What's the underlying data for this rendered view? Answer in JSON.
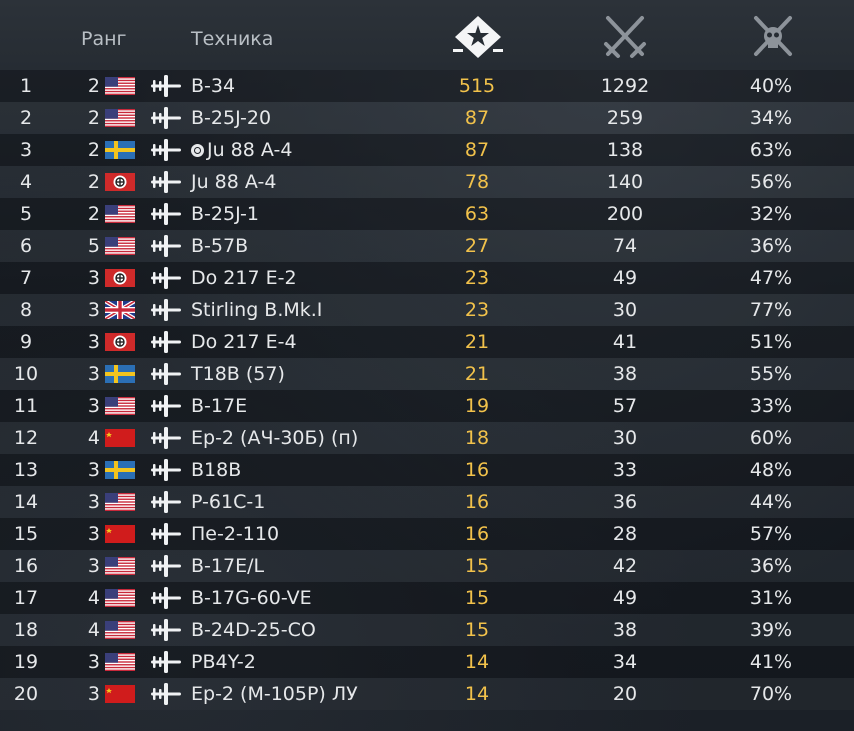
{
  "header": {
    "rank_label": "Ранг",
    "vehicle_label": "Техника",
    "score_icon": "star-badge-icon",
    "battles_icon": "crossed-swords-icon",
    "winrate_icon": "crossed-swords-skull-icon"
  },
  "colors": {
    "score": "#f2c24b",
    "text": "#e6e8ea",
    "header_text": "#b9bfc5"
  },
  "rows": [
    {
      "num": "1",
      "rank": "2",
      "flag": "usa",
      "name": "B-34",
      "special": false,
      "score": "515",
      "battles": "1292",
      "winrate": "40%"
    },
    {
      "num": "2",
      "rank": "2",
      "flag": "usa",
      "name": "B-25J-20",
      "special": false,
      "score": "87",
      "battles": "259",
      "winrate": "34%"
    },
    {
      "num": "3",
      "rank": "2",
      "flag": "sweden",
      "name": "Ju 88 A-4",
      "special": true,
      "score": "87",
      "battles": "138",
      "winrate": "63%"
    },
    {
      "num": "4",
      "rank": "2",
      "flag": "germany",
      "name": "Ju 88 A-4",
      "special": false,
      "score": "78",
      "battles": "140",
      "winrate": "56%"
    },
    {
      "num": "5",
      "rank": "2",
      "flag": "usa",
      "name": "B-25J-1",
      "special": false,
      "score": "63",
      "battles": "200",
      "winrate": "32%"
    },
    {
      "num": "6",
      "rank": "5",
      "flag": "usa",
      "name": "B-57B",
      "special": false,
      "score": "27",
      "battles": "74",
      "winrate": "36%"
    },
    {
      "num": "7",
      "rank": "3",
      "flag": "germany",
      "name": "Do 217 E-2",
      "special": false,
      "score": "23",
      "battles": "49",
      "winrate": "47%"
    },
    {
      "num": "8",
      "rank": "3",
      "flag": "uk",
      "name": "Stirling B.Mk.I",
      "special": false,
      "score": "23",
      "battles": "30",
      "winrate": "77%"
    },
    {
      "num": "9",
      "rank": "3",
      "flag": "germany",
      "name": "Do 217 E-4",
      "special": false,
      "score": "21",
      "battles": "41",
      "winrate": "51%"
    },
    {
      "num": "10",
      "rank": "3",
      "flag": "sweden",
      "name": "T18B (57)",
      "special": false,
      "score": "21",
      "battles": "38",
      "winrate": "55%"
    },
    {
      "num": "11",
      "rank": "3",
      "flag": "usa",
      "name": "B-17E",
      "special": false,
      "score": "19",
      "battles": "57",
      "winrate": "33%"
    },
    {
      "num": "12",
      "rank": "4",
      "flag": "ussr",
      "name": "Ер-2 (АЧ-30Б) (п)",
      "special": false,
      "score": "18",
      "battles": "30",
      "winrate": "60%"
    },
    {
      "num": "13",
      "rank": "3",
      "flag": "sweden",
      "name": "B18B",
      "special": false,
      "score": "16",
      "battles": "33",
      "winrate": "48%"
    },
    {
      "num": "14",
      "rank": "3",
      "flag": "usa",
      "name": "P-61C-1",
      "special": false,
      "score": "16",
      "battles": "36",
      "winrate": "44%"
    },
    {
      "num": "15",
      "rank": "3",
      "flag": "ussr",
      "name": "Пе-2-110",
      "special": false,
      "score": "16",
      "battles": "28",
      "winrate": "57%"
    },
    {
      "num": "16",
      "rank": "3",
      "flag": "usa",
      "name": "B-17E/L",
      "special": false,
      "score": "15",
      "battles": "42",
      "winrate": "36%"
    },
    {
      "num": "17",
      "rank": "4",
      "flag": "usa",
      "name": "B-17G-60-VE",
      "special": false,
      "score": "15",
      "battles": "49",
      "winrate": "31%"
    },
    {
      "num": "18",
      "rank": "4",
      "flag": "usa",
      "name": "B-24D-25-CO",
      "special": false,
      "score": "15",
      "battles": "38",
      "winrate": "39%"
    },
    {
      "num": "19",
      "rank": "3",
      "flag": "usa",
      "name": "PB4Y-2",
      "special": false,
      "score": "14",
      "battles": "34",
      "winrate": "41%"
    },
    {
      "num": "20",
      "rank": "3",
      "flag": "ussr",
      "name": "Ер-2 (М-105Р) ЛУ",
      "special": false,
      "score": "14",
      "battles": "20",
      "winrate": "70%"
    }
  ]
}
